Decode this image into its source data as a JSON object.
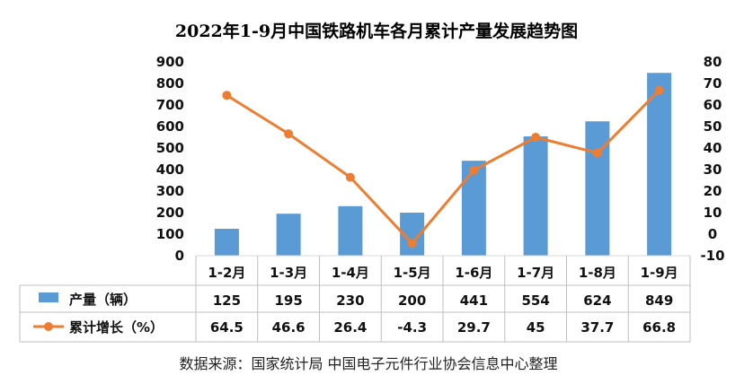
{
  "chart_data": {
    "type": "bar",
    "title": "2022年1-9月中国铁路机车各月累计产量发展趋势图",
    "categories": [
      "1-2月",
      "1-3月",
      "1-4月",
      "1-5月",
      "1-6月",
      "1-7月",
      "1-8月",
      "1-9月"
    ],
    "series": [
      {
        "name": "产量（辆）",
        "type": "bar",
        "axis": "left",
        "color": "#5b9bd5",
        "values": [
          125,
          195,
          230,
          200,
          441,
          554,
          624,
          849
        ],
        "labels": [
          "125",
          "195",
          "230",
          "200",
          "441",
          "554",
          "624",
          "849"
        ]
      },
      {
        "name": "累计增长（%）",
        "type": "line",
        "axis": "right",
        "color": "#ed7d31",
        "values": [
          64.5,
          46.6,
          26.4,
          -4.3,
          29.7,
          45,
          37.7,
          66.8
        ],
        "labels": [
          "64.5",
          "46.6",
          "26.4",
          "-4.3",
          "29.7",
          "45",
          "37.7",
          "66.8"
        ]
      }
    ],
    "y_left": {
      "min": 0,
      "max": 900,
      "step": 100
    },
    "y_right": {
      "min": -10,
      "max": 80,
      "step": 10
    },
    "grid": false,
    "legend": "data-table",
    "source": "数据来源：国家统计局    中国电子元件行业协会信息中心整理"
  }
}
